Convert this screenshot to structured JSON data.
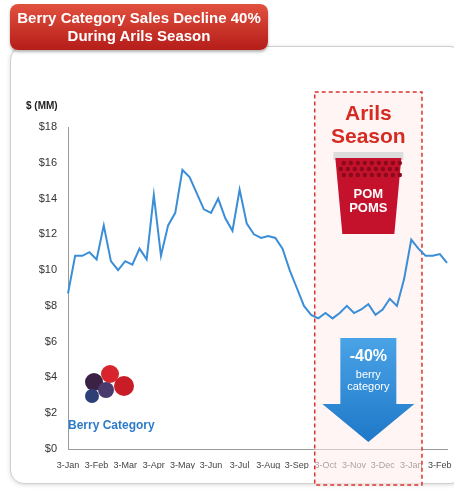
{
  "chart_data": {
    "type": "line",
    "title": "Berry Category Sales Decline 40%\nDuring Arils Season",
    "y_label": "$ (MM)",
    "categories": [
      "3-Jan",
      null,
      null,
      null,
      "3-Feb",
      null,
      null,
      null,
      "3-Mar",
      null,
      null,
      null,
      "3-Apr",
      null,
      null,
      null,
      "3-May",
      null,
      null,
      null,
      "3-Jun",
      null,
      null,
      null,
      "3-Jul",
      null,
      null,
      null,
      "3-Aug",
      null,
      null,
      null,
      "3-Sep",
      null,
      null,
      null,
      "3-Oct",
      null,
      null,
      null,
      "3-Nov",
      null,
      null,
      null,
      "3-Dec",
      null,
      null,
      null,
      "3-Jan",
      null,
      null,
      null,
      "3-Feb",
      null
    ],
    "series": [
      {
        "name": "Berry Category",
        "color": "#3a8ed8",
        "values": [
          8.7,
          10.8,
          10.8,
          11.0,
          10.6,
          12.5,
          10.5,
          10.0,
          10.5,
          10.3,
          11.2,
          10.6,
          14.2,
          10.8,
          12.5,
          13.2,
          15.6,
          15.2,
          14.3,
          13.4,
          13.2,
          14.0,
          12.9,
          12.2,
          14.5,
          12.6,
          12.0,
          11.8,
          11.9,
          11.8,
          11.2,
          10.0,
          9.0,
          8.0,
          7.5,
          7.3,
          7.6,
          7.3,
          7.6,
          8.0,
          7.6,
          7.8,
          8.1,
          7.5,
          7.8,
          8.4,
          8.0,
          9.5,
          11.7,
          11.2,
          10.8,
          10.8,
          10.9,
          10.4
        ]
      }
    ],
    "ylim": [
      0,
      18
    ],
    "yticks": [
      {
        "value": 0,
        "label": "$0"
      },
      {
        "value": 2,
        "label": "$2"
      },
      {
        "value": 4,
        "label": "$4"
      },
      {
        "value": 6,
        "label": "$6"
      },
      {
        "value": 8,
        "label": "$8"
      },
      {
        "value": 10,
        "label": "$10"
      },
      {
        "value": 12,
        "label": "$12"
      },
      {
        "value": 14,
        "label": "$14"
      },
      {
        "value": 16,
        "label": "$16"
      },
      {
        "value": 18,
        "label": "$18"
      }
    ],
    "grid": false,
    "marker": "none",
    "line_style": "solid",
    "annotations": [
      {
        "type": "region",
        "text": "Arils Season",
        "x_start": 34.5,
        "x_end": 49.5
      },
      {
        "type": "product",
        "text": "POM POMS"
      },
      {
        "type": "arrow",
        "text": "-40%",
        "subtext": "berry category"
      }
    ]
  }
}
